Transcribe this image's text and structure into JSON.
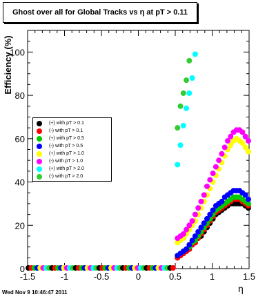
{
  "title": "Ghost over all for Global Tracks vs η at pT > 0.11",
  "timestamp": "Wed Nov  9 10:46:47 2011",
  "chart_data": {
    "type": "scatter",
    "title": "Ghost over all for Global Tracks vs η at pT > 0.11",
    "xlabel": "η",
    "ylabel": "Efficiency (%)",
    "xlim": [
      -1.5,
      1.5
    ],
    "ylim": [
      0,
      110
    ],
    "x_ticks": [
      "-1.5",
      "-1",
      "-0.5",
      "0",
      "0.5",
      "1",
      "1.5"
    ],
    "y_ticks": [
      "0",
      "20",
      "40",
      "60",
      "80",
      "100"
    ],
    "grid": false,
    "legend_position": "left",
    "series": [
      {
        "name": "(+) with pT > 0.1",
        "color": "#000000",
        "points": [
          [
            0.53,
            5
          ],
          [
            0.57,
            6
          ],
          [
            0.61,
            7
          ],
          [
            0.65,
            8
          ],
          [
            0.69,
            9
          ],
          [
            0.73,
            11
          ],
          [
            0.77,
            12
          ],
          [
            0.81,
            14
          ],
          [
            0.85,
            15
          ],
          [
            0.89,
            17
          ],
          [
            0.93,
            19
          ],
          [
            0.97,
            21
          ],
          [
            1.01,
            23
          ],
          [
            1.05,
            25
          ],
          [
            1.09,
            26
          ],
          [
            1.13,
            27
          ],
          [
            1.17,
            28
          ],
          [
            1.21,
            29
          ],
          [
            1.25,
            30
          ],
          [
            1.29,
            30
          ],
          [
            1.33,
            30
          ],
          [
            1.37,
            30
          ],
          [
            1.41,
            30
          ],
          [
            1.45,
            29
          ],
          [
            1.49,
            28
          ]
        ]
      },
      {
        "name": "(-) with pT > 0.1",
        "color": "#ff0000",
        "points": [
          [
            0.53,
            5
          ],
          [
            0.57,
            6
          ],
          [
            0.61,
            7
          ],
          [
            0.65,
            8
          ],
          [
            0.69,
            9
          ],
          [
            0.73,
            11
          ],
          [
            0.77,
            12
          ],
          [
            0.81,
            14
          ],
          [
            0.85,
            16
          ],
          [
            0.89,
            18
          ],
          [
            0.93,
            20
          ],
          [
            0.97,
            22
          ],
          [
            1.01,
            24
          ],
          [
            1.05,
            26
          ],
          [
            1.09,
            27
          ],
          [
            1.13,
            28
          ],
          [
            1.17,
            29
          ],
          [
            1.21,
            30
          ],
          [
            1.25,
            31
          ],
          [
            1.29,
            32
          ],
          [
            1.33,
            32
          ],
          [
            1.37,
            32
          ],
          [
            1.41,
            31
          ],
          [
            1.45,
            30
          ],
          [
            1.49,
            29
          ]
        ]
      },
      {
        "name": "(+) with pT > 0.5",
        "color": "#00cc00",
        "points": [
          [
            0.53,
            6
          ],
          [
            0.57,
            7
          ],
          [
            0.61,
            8
          ],
          [
            0.65,
            9
          ],
          [
            0.69,
            10
          ],
          [
            0.73,
            12
          ],
          [
            0.77,
            13
          ],
          [
            0.81,
            15
          ],
          [
            0.85,
            17
          ],
          [
            0.89,
            19
          ],
          [
            0.93,
            21
          ],
          [
            0.97,
            23
          ],
          [
            1.01,
            25
          ],
          [
            1.05,
            27
          ],
          [
            1.09,
            28
          ],
          [
            1.13,
            29
          ],
          [
            1.17,
            30
          ],
          [
            1.21,
            31
          ],
          [
            1.25,
            32
          ],
          [
            1.29,
            33
          ],
          [
            1.33,
            33
          ],
          [
            1.37,
            33
          ],
          [
            1.41,
            32
          ],
          [
            1.45,
            31
          ],
          [
            1.49,
            30
          ]
        ]
      },
      {
        "name": "(-) with pT > 0.5",
        "color": "#0000ff",
        "points": [
          [
            0.53,
            6
          ],
          [
            0.57,
            7
          ],
          [
            0.61,
            8
          ],
          [
            0.65,
            9
          ],
          [
            0.69,
            11
          ],
          [
            0.73,
            13
          ],
          [
            0.77,
            15
          ],
          [
            0.81,
            17
          ],
          [
            0.85,
            19
          ],
          [
            0.89,
            21
          ],
          [
            0.93,
            23
          ],
          [
            0.97,
            25
          ],
          [
            1.01,
            27
          ],
          [
            1.05,
            29
          ],
          [
            1.09,
            30
          ],
          [
            1.13,
            31
          ],
          [
            1.17,
            33
          ],
          [
            1.21,
            34
          ],
          [
            1.25,
            35
          ],
          [
            1.29,
            36
          ],
          [
            1.33,
            36
          ],
          [
            1.37,
            36
          ],
          [
            1.41,
            35
          ],
          [
            1.45,
            34
          ],
          [
            1.49,
            32
          ]
        ]
      },
      {
        "name": "(+) with pT > 1.0",
        "color": "#ffff00",
        "points": [
          [
            0.53,
            12
          ],
          [
            0.57,
            13
          ],
          [
            0.61,
            14
          ],
          [
            0.65,
            16
          ],
          [
            0.69,
            18
          ],
          [
            0.73,
            20
          ],
          [
            0.77,
            22
          ],
          [
            0.81,
            25
          ],
          [
            0.85,
            28
          ],
          [
            0.89,
            31
          ],
          [
            0.93,
            34
          ],
          [
            0.97,
            37
          ],
          [
            1.01,
            40
          ],
          [
            1.05,
            43
          ],
          [
            1.09,
            46
          ],
          [
            1.13,
            49
          ],
          [
            1.17,
            52
          ],
          [
            1.21,
            55
          ],
          [
            1.25,
            57
          ],
          [
            1.29,
            59
          ],
          [
            1.33,
            60
          ],
          [
            1.37,
            59
          ],
          [
            1.41,
            58
          ],
          [
            1.45,
            56
          ],
          [
            1.49,
            54
          ]
        ]
      },
      {
        "name": "(-) with pT > 1.0",
        "color": "#ff00ff",
        "points": [
          [
            0.53,
            14
          ],
          [
            0.57,
            15
          ],
          [
            0.61,
            16
          ],
          [
            0.65,
            18
          ],
          [
            0.69,
            20
          ],
          [
            0.73,
            22
          ],
          [
            0.77,
            25
          ],
          [
            0.81,
            28
          ],
          [
            0.85,
            31
          ],
          [
            0.89,
            34
          ],
          [
            0.93,
            38
          ],
          [
            0.97,
            41
          ],
          [
            1.01,
            44
          ],
          [
            1.05,
            47
          ],
          [
            1.09,
            50
          ],
          [
            1.13,
            53
          ],
          [
            1.17,
            56
          ],
          [
            1.21,
            59
          ],
          [
            1.25,
            61
          ],
          [
            1.29,
            63
          ],
          [
            1.33,
            64
          ],
          [
            1.37,
            64
          ],
          [
            1.41,
            63
          ],
          [
            1.45,
            61
          ],
          [
            1.49,
            59
          ]
        ]
      },
      {
        "name": "(+) with pT > 2.0",
        "color": "#00ffff",
        "points": [
          [
            0.53,
            48
          ],
          [
            0.57,
            57
          ],
          [
            0.61,
            66
          ],
          [
            0.65,
            74
          ],
          [
            0.69,
            81
          ],
          [
            0.73,
            88
          ],
          [
            0.77,
            99
          ]
        ]
      },
      {
        "name": "(-) with pT > 2.0",
        "color": "#33cc33",
        "points": [
          [
            0.53,
            65
          ],
          [
            0.57,
            75
          ],
          [
            0.61,
            81
          ],
          [
            0.65,
            87
          ],
          [
            0.69,
            96
          ]
        ]
      }
    ],
    "baseline_x": [
      -1.49,
      -1.45,
      -1.41,
      -1.37,
      -1.33,
      -1.29,
      -1.25,
      -1.21,
      -1.17,
      -1.13,
      -1.09,
      -1.05,
      -1.01,
      -0.97,
      -0.93,
      -0.89,
      -0.85,
      -0.81,
      -0.77,
      -0.73,
      -0.69,
      -0.65,
      -0.61,
      -0.57,
      -0.53,
      -0.49,
      -0.45,
      -0.41,
      -0.37,
      -0.33,
      -0.29,
      -0.25,
      -0.21,
      -0.17,
      -0.13,
      -0.09,
      -0.05,
      -0.01,
      0.03,
      0.07,
      0.11,
      0.15,
      0.19,
      0.23,
      0.27,
      0.31,
      0.35,
      0.39,
      0.43,
      0.47
    ],
    "baseline_y": 0
  }
}
